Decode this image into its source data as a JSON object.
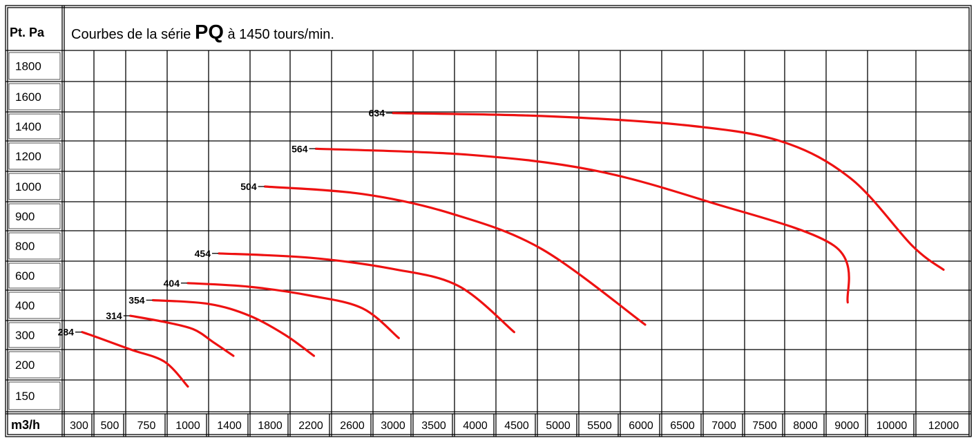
{
  "header": {
    "corner_label": "Pt. Pa",
    "title_prefix": "Courbes de la série ",
    "title_strong": "PQ",
    "title_suffix": " à 1450 tours/min."
  },
  "chart_data": {
    "type": "line",
    "title": "Courbes de la série PQ à 1450 tours/min.",
    "xlabel": "m3/h",
    "ylabel": "Pt. Pa",
    "x_ticks": [
      "300",
      "500",
      "750",
      "1000",
      "1400",
      "1800",
      "2200",
      "2600",
      "3000",
      "3500",
      "4000",
      "4500",
      "5000",
      "5500",
      "6000",
      "6500",
      "7000",
      "7500",
      "8000",
      "9000",
      "10000",
      "12000"
    ],
    "y_ticks": [
      "1800",
      "1600",
      "1400",
      "1200",
      "1000",
      "900",
      "800",
      "600",
      "400",
      "300",
      "200",
      "150"
    ],
    "grid": true,
    "curve_color": "#ee1111",
    "series": [
      {
        "name": "284",
        "points": [
          [
            320,
            310
          ],
          [
            430,
            290
          ],
          [
            650,
            250
          ],
          [
            860,
            210
          ],
          [
            1000,
            165
          ]
        ]
      },
      {
        "name": "314",
        "points": [
          [
            640,
            365
          ],
          [
            850,
            345
          ],
          [
            1050,
            320
          ],
          [
            1250,
            275
          ],
          [
            1440,
            230
          ]
        ]
      },
      {
        "name": "354",
        "points": [
          [
            790,
            435
          ],
          [
            1200,
            410
          ],
          [
            1600,
            365
          ],
          [
            1950,
            300
          ],
          [
            2230,
            230
          ]
        ]
      },
      {
        "name": "404",
        "points": [
          [
            1000,
            550
          ],
          [
            1600,
            525
          ],
          [
            2200,
            465
          ],
          [
            2700,
            390
          ],
          [
            3070,
            290
          ]
        ]
      },
      {
        "name": "454",
        "points": [
          [
            1300,
            750
          ],
          [
            2200,
            720
          ],
          [
            3000,
            645
          ],
          [
            3800,
            530
          ],
          [
            4470,
            310
          ]
        ]
      },
      {
        "name": "504",
        "points": [
          [
            1750,
            1000
          ],
          [
            2700,
            975
          ],
          [
            3700,
            910
          ],
          [
            4800,
            780
          ],
          [
            6050,
            335
          ]
        ]
      },
      {
        "name": "564",
        "points": [
          [
            2250,
            1250
          ],
          [
            3900,
            1210
          ],
          [
            5400,
            1110
          ],
          [
            6800,
            950
          ],
          [
            8700,
            800
          ],
          [
            9020,
            420
          ]
        ]
      },
      {
        "name": "634",
        "points": [
          [
            3000,
            1490
          ],
          [
            4800,
            1470
          ],
          [
            6500,
            1410
          ],
          [
            7700,
            1300
          ],
          [
            9100,
            1050
          ],
          [
            10800,
            800
          ],
          [
            12000,
            640
          ]
        ]
      }
    ]
  }
}
